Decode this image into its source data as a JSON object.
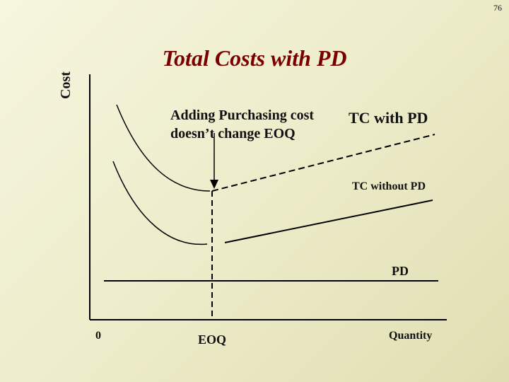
{
  "page_number": "76",
  "title": "Total Costs with PD",
  "axes": {
    "y_label": "Cost",
    "x_label": "Quantity",
    "origin_label": "0",
    "eoq_label": "EOQ"
  },
  "annotation": {
    "line1": "Adding Purchasing cost",
    "line2": "doesn’t change EOQ"
  },
  "curves": {
    "tc_with_pd": "TC with PD",
    "tc_without_pd": "TC without PD",
    "pd": "PD"
  },
  "colors": {
    "title": "#7a0000",
    "background": "#ecebc8",
    "lines": "#000000"
  }
}
